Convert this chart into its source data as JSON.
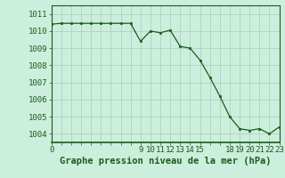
{
  "x": [
    0,
    1,
    2,
    3,
    4,
    5,
    6,
    7,
    8,
    9,
    10,
    11,
    12,
    13,
    14,
    15,
    16,
    17,
    18,
    19,
    20,
    21,
    22,
    23
  ],
  "y": [
    1010.4,
    1010.45,
    1010.45,
    1010.45,
    1010.45,
    1010.45,
    1010.45,
    1010.45,
    1010.45,
    1009.4,
    1010.0,
    1009.9,
    1010.05,
    1009.1,
    1009.0,
    1008.3,
    1007.3,
    1006.2,
    1005.0,
    1004.3,
    1004.2,
    1004.3,
    1004.0,
    1004.4
  ],
  "line_color": "#1a5c1a",
  "marker_color": "#1a5c1a",
  "bg_color": "#cceedd",
  "grid_color": "#aaccbb",
  "title": "Graphe pression niveau de la mer (hPa)",
  "yticks": [
    1004,
    1005,
    1006,
    1007,
    1008,
    1009,
    1010,
    1011
  ],
  "xtick_labels_show": [
    0,
    9,
    10,
    11,
    12,
    13,
    14,
    15,
    18,
    19,
    20,
    21,
    22,
    23
  ],
  "ylim": [
    1003.5,
    1011.5
  ],
  "xlim": [
    0,
    23
  ],
  "tick_color": "#1a5c1a",
  "title_color": "#1a5c1a",
  "title_fontsize": 7.5,
  "tick_fontsize": 6.5
}
